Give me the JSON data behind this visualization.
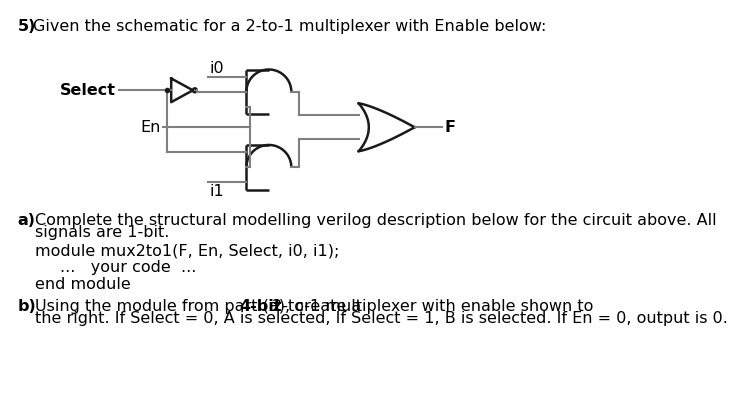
{
  "title_num": "5)",
  "title_text": "Given the schematic for a 2-to-1 multiplexer with Enable below:",
  "part_a_label": "a)",
  "part_a_line1": "Complete the structural modelling verilog description below for the circuit above. All",
  "part_a_line2": "signals are 1-bit.",
  "part_a_code1": "module mux2to1(F, En, Select, i0, i1);",
  "part_a_code2": "...   your code  ...",
  "part_a_code3": "end module",
  "part_b_label": "b)",
  "part_b_pre": "Using the module from part (a), create a ",
  "part_b_bold": "4-bit",
  "part_b_post": " 2-to-1 multiplexer with enable shown to",
  "part_b_line2": "the right. If Select = 0, A is selected, If Select = 1, B is selected. If En = 0, output is 0.",
  "bg_color": "#ffffff",
  "text_color": "#000000",
  "gate_color": "#1a1a1a",
  "wire_color": "#7f7f7f",
  "lw_gate": 1.8,
  "lw_wire": 1.5,
  "font_size": 11.5,
  "font_family": "Arial"
}
